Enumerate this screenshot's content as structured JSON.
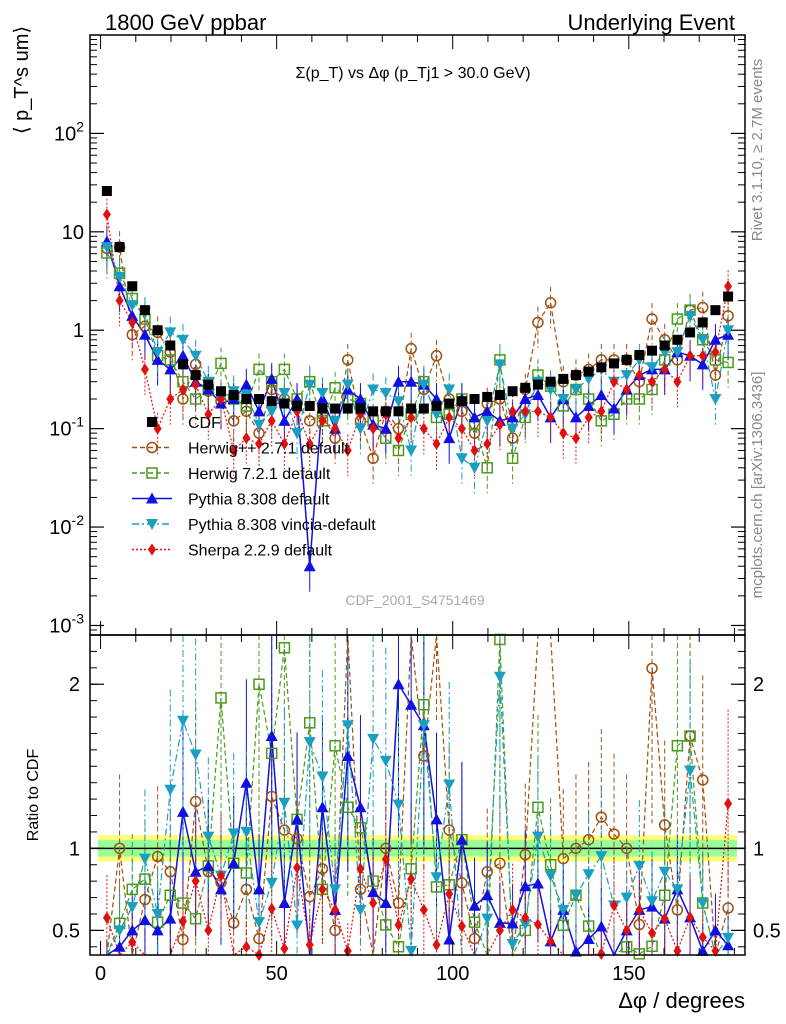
{
  "header": {
    "left": "1800 GeV ppbar",
    "right": "Underlying Event"
  },
  "side_labels": {
    "rivet": "Rivet 3.1.10, ≥ 2.7M events",
    "mcplots": "mcplots.cern.ch [arXiv:1306.3436]"
  },
  "watermark": "CDF_2001_S4751469",
  "chart_data": [
    {
      "type": "scatter",
      "title": "Σ(p_T) vs Δφ (p_Tj1 > 30.0 GeV)",
      "ylabel": "⟨ p_T^s um⟩",
      "yscale": "log",
      "ylim": [
        0.0008,
        1000
      ],
      "xlim": [
        -3,
        183
      ],
      "ytick_labels": [
        "10^-3",
        "10^-2",
        "10^-1",
        "1",
        "10",
        "10^2"
      ],
      "legend_position": "left-center",
      "x": [
        1.8,
        5.4,
        9,
        12.6,
        16.2,
        19.8,
        23.4,
        27,
        30.6,
        34.2,
        37.8,
        41.4,
        45,
        48.6,
        52.2,
        55.8,
        59.4,
        63,
        66.6,
        70.2,
        73.8,
        77.4,
        81,
        84.6,
        88.2,
        91.8,
        95.4,
        99,
        102.6,
        106.2,
        109.8,
        113.4,
        117,
        120.6,
        124.2,
        127.8,
        131.4,
        135,
        138.6,
        142.2,
        145.8,
        149.4,
        153,
        156.6,
        160.2,
        163.8,
        167.4,
        171,
        174.6,
        178.2
      ],
      "series": [
        {
          "name": "CDF",
          "color": "#000000",
          "marker": "square",
          "line": "none",
          "values": [
            26,
            7,
            2.8,
            1.6,
            1.0,
            0.7,
            0.45,
            0.35,
            0.28,
            0.24,
            0.22,
            0.2,
            0.2,
            0.19,
            0.18,
            0.17,
            0.17,
            0.16,
            0.16,
            0.16,
            0.16,
            0.15,
            0.15,
            0.15,
            0.16,
            0.16,
            0.17,
            0.18,
            0.19,
            0.2,
            0.21,
            0.22,
            0.24,
            0.26,
            0.28,
            0.3,
            0.32,
            0.35,
            0.38,
            0.42,
            0.46,
            0.5,
            0.56,
            0.62,
            0.7,
            0.8,
            0.95,
            1.2,
            1.6,
            2.2
          ]
        },
        {
          "name": "Herwig++ 2.7.1 default",
          "color": "#a0500f",
          "marker": "circle-open",
          "line": "dashed",
          "values": [
            6.8,
            7,
            0.9,
            1.1,
            0.95,
            0.6,
            0.2,
            0.45,
            0.24,
            0.19,
            0.12,
            0.15,
            0.09,
            0.25,
            0.2,
            0.18,
            0.12,
            0.14,
            0.08,
            0.5,
            0.12,
            0.05,
            0.15,
            0.1,
            0.65,
            0.25,
            0.55,
            0.2,
            0.15,
            0.09,
            0.18,
            0.2,
            0.08,
            0.25,
            1.2,
            1.9,
            0.3,
            0.35,
            0.4,
            0.5,
            0.5,
            0.5,
            0.3,
            1.3,
            0.8,
            0.5,
            1.6,
            1.7,
            0.35,
            1.4
          ]
        },
        {
          "name": "Herwig 7.2.1 default",
          "color": "#4a9a1c",
          "marker": "square-open",
          "line": "dashed",
          "values": [
            6.1,
            3.8,
            2.1,
            1.3,
            0.55,
            0.5,
            0.3,
            0.2,
            0.25,
            0.46,
            0.2,
            0.17,
            0.4,
            0.3,
            0.4,
            0.2,
            0.3,
            0.12,
            0.26,
            0.2,
            0.18,
            0.12,
            0.08,
            0.06,
            0.14,
            0.3,
            0.13,
            0.14,
            0.2,
            0.11,
            0.04,
            0.5,
            0.05,
            0.13,
            0.35,
            0.27,
            0.17,
            0.25,
            0.2,
            0.12,
            0.14,
            0.2,
            0.2,
            0.25,
            0.5,
            1.3,
            1.6,
            0.8,
            0.5,
            0.47
          ]
        },
        {
          "name": "Pythia 8.308 default",
          "color": "#1010e0",
          "marker": "triangle-up",
          "line": "solid",
          "values": [
            8,
            2.8,
            1.4,
            0.9,
            0.5,
            0.4,
            0.55,
            0.3,
            0.25,
            0.18,
            0.2,
            0.28,
            0.15,
            0.32,
            0.12,
            0.2,
            0.004,
            0.2,
            0.1,
            0.25,
            0.2,
            0.11,
            0.1,
            0.3,
            0.3,
            0.28,
            0.2,
            0.08,
            0.2,
            0.13,
            0.15,
            0.12,
            0.13,
            0.2,
            0.22,
            0.13,
            0.2,
            0.13,
            0.17,
            0.22,
            0.16,
            0.25,
            0.35,
            0.4,
            0.4,
            0.6,
            0.55,
            0.45,
            0.8,
            0.9
          ]
        },
        {
          "name": "Pythia 8.308 vincia-default",
          "color": "#1a9fc0",
          "marker": "triangle-down",
          "line": "dashdot",
          "values": [
            7,
            3.5,
            1.8,
            1.5,
            0.6,
            0.95,
            0.8,
            0.55,
            0.3,
            0.2,
            0.24,
            0.22,
            0.11,
            0.15,
            0.23,
            0.09,
            0.28,
            0.23,
            0.12,
            0.28,
            0.1,
            0.25,
            0.23,
            0.19,
            0.06,
            0.28,
            0.14,
            0.25,
            0.05,
            0.04,
            0.12,
            0.45,
            0.1,
            0.14,
            0.3,
            0.25,
            0.2,
            0.25,
            0.32,
            0.4,
            0.3,
            0.35,
            0.5,
            0.42,
            0.6,
            0.6,
            1.4,
            0.8,
            0.2,
            1.0
          ]
        },
        {
          "name": "Sherpa 2.2.9 default",
          "color": "#e01010",
          "marker": "diamond",
          "line": "dotted",
          "values": [
            15,
            2,
            1.2,
            0.4,
            0.1,
            0.2,
            0.25,
            0.28,
            0.14,
            0.2,
            0.06,
            0.08,
            0.07,
            0.12,
            0.07,
            0.15,
            0.07,
            0.12,
            0.1,
            0.06,
            0.14,
            0.1,
            0.14,
            0.08,
            0.13,
            0.1,
            0.07,
            0.13,
            0.1,
            0.06,
            0.07,
            0.11,
            0.15,
            0.15,
            0.15,
            0.13,
            0.09,
            0.08,
            0.13,
            0.15,
            0.3,
            0.25,
            0.35,
            0.3,
            0.4,
            0.3,
            0.55,
            0.55,
            0.6,
            2.8
          ]
        }
      ]
    },
    {
      "type": "scatter",
      "ylabel": "Ratio to CDF",
      "xlabel": "Δφ / degrees",
      "ylim": [
        0.35,
        2.3
      ],
      "xlim": [
        -3,
        183
      ],
      "x_ticks": [
        0,
        50,
        100,
        150
      ],
      "y_ticks": [
        0.5,
        1,
        2
      ],
      "reference_band": {
        "inner": 0.05,
        "outer": 0.08
      }
    }
  ]
}
